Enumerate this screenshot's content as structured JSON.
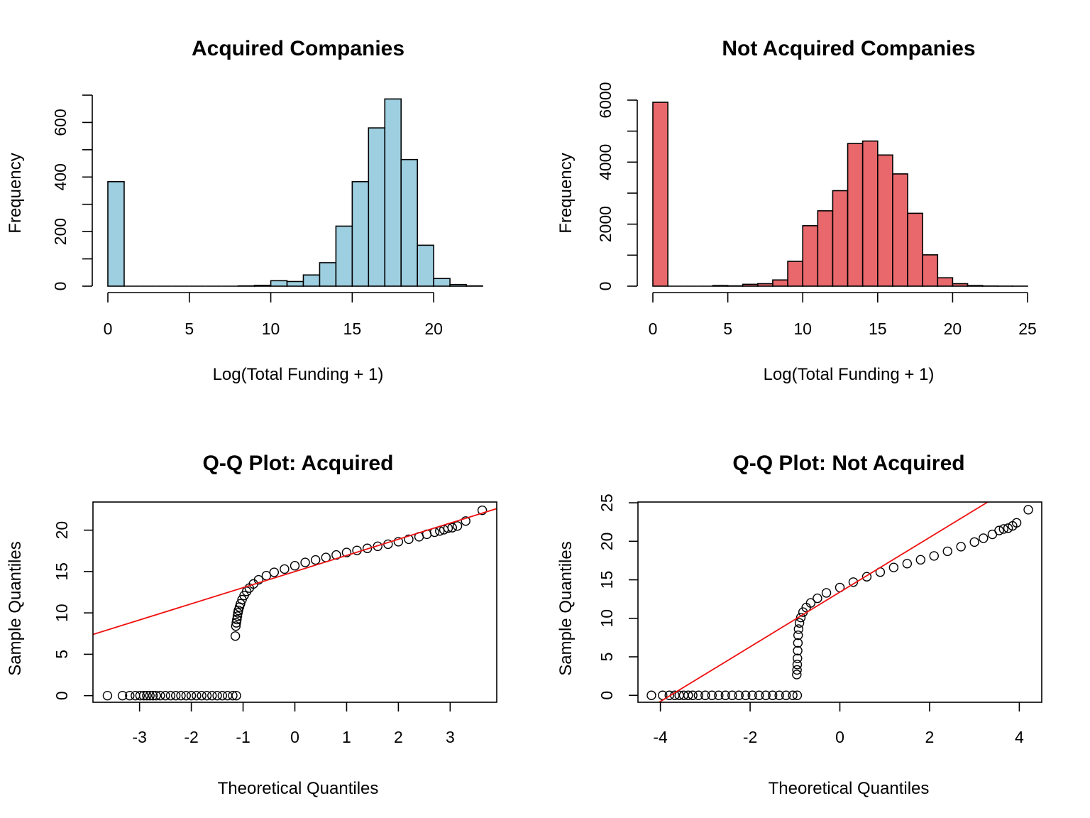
{
  "chart_data": [
    {
      "type": "bar",
      "title": "Acquired Companies",
      "xlabel": "Log(Total Funding + 1)",
      "ylabel": "Frequency",
      "bin_width": 1,
      "bin_start": 0,
      "values": [
        383,
        0,
        0,
        0,
        0,
        0,
        0,
        0,
        1,
        3,
        20,
        17,
        41,
        86,
        220,
        383,
        580,
        686,
        464,
        150,
        28,
        6,
        1
      ],
      "xlim": [
        0,
        23
      ],
      "ylim": [
        0,
        700
      ],
      "xticks": [
        0,
        5,
        10,
        15,
        20
      ],
      "xtick_labels": [
        "0",
        "5",
        "10",
        "15",
        "20"
      ],
      "yticks": [
        0,
        100,
        200,
        300,
        400,
        500,
        600,
        700
      ],
      "ytick_labels": [
        "0",
        "",
        "200",
        "",
        "400",
        "",
        "600",
        ""
      ],
      "bar_color": "#9ecfe0",
      "grid": false
    },
    {
      "type": "bar",
      "title": "Not Acquired Companies",
      "xlabel": "Log(Total Funding + 1)",
      "ylabel": "Frequency",
      "bin_width": 1,
      "bin_start": 0,
      "values": [
        5930,
        0,
        0,
        0,
        20,
        10,
        60,
        80,
        200,
        800,
        1950,
        2430,
        3080,
        4600,
        4680,
        4230,
        3620,
        2350,
        1010,
        270,
        80,
        20,
        5,
        2,
        1
      ],
      "xlim": [
        0,
        25
      ],
      "ylim": [
        0,
        6000
      ],
      "xticks": [
        0,
        5,
        10,
        15,
        20,
        25
      ],
      "xtick_labels": [
        "0",
        "5",
        "10",
        "15",
        "20",
        "25"
      ],
      "yticks": [
        0,
        1000,
        2000,
        3000,
        4000,
        5000,
        6000
      ],
      "ytick_labels": [
        "0",
        "",
        "2000",
        "",
        "4000",
        "",
        "6000"
      ],
      "bar_color": "#e8686c",
      "grid": false
    },
    {
      "type": "scatter",
      "title": "Q-Q Plot: Acquired",
      "xlabel": "Theoretical Quantiles",
      "ylabel": "Sample Quantiles",
      "xlim": [
        -3.9,
        3.9
      ],
      "ylim": [
        -0.8,
        23.4
      ],
      "xticks": [
        -3,
        -2,
        -1,
        0,
        1,
        2,
        3
      ],
      "xtick_labels": [
        "-3",
        "-2",
        "-1",
        "0",
        "1",
        "2",
        "3"
      ],
      "yticks": [
        0,
        5,
        10,
        15,
        20
      ],
      "ytick_labels": [
        "0",
        "5",
        "10",
        "15",
        "20"
      ],
      "reference_line": {
        "intercept": 15.0,
        "slope": 1.95,
        "color": "#ee1111"
      },
      "points": [
        [
          -3.62,
          0
        ],
        [
          -3.33,
          0
        ],
        [
          -3.19,
          0
        ],
        [
          -3.08,
          0
        ],
        [
          -2.99,
          0
        ],
        [
          -2.92,
          0
        ],
        [
          -2.86,
          0
        ],
        [
          -2.8,
          0
        ],
        [
          -2.74,
          0
        ],
        [
          -2.68,
          0
        ],
        [
          -2.6,
          0
        ],
        [
          -2.5,
          0
        ],
        [
          -2.4,
          0
        ],
        [
          -2.3,
          0
        ],
        [
          -2.2,
          0
        ],
        [
          -2.1,
          0
        ],
        [
          -2.0,
          0
        ],
        [
          -1.9,
          0
        ],
        [
          -1.8,
          0
        ],
        [
          -1.7,
          0
        ],
        [
          -1.6,
          0
        ],
        [
          -1.5,
          0
        ],
        [
          -1.4,
          0
        ],
        [
          -1.3,
          0
        ],
        [
          -1.2,
          0
        ],
        [
          -1.13,
          0
        ],
        [
          -1.15,
          7.2
        ],
        [
          -1.14,
          8.4
        ],
        [
          -1.13,
          8.8
        ],
        [
          -1.12,
          9.2
        ],
        [
          -1.11,
          9.6
        ],
        [
          -1.1,
          10.0
        ],
        [
          -1.09,
          10.3
        ],
        [
          -1.07,
          10.7
        ],
        [
          -1.05,
          11.1
        ],
        [
          -1.02,
          11.6
        ],
        [
          -0.98,
          12.1
        ],
        [
          -0.93,
          12.6
        ],
        [
          -0.88,
          13.0
        ],
        [
          -0.8,
          13.5
        ],
        [
          -0.7,
          14.0
        ],
        [
          -0.55,
          14.5
        ],
        [
          -0.4,
          14.9
        ],
        [
          -0.2,
          15.3
        ],
        [
          0.0,
          15.7
        ],
        [
          0.2,
          16.1
        ],
        [
          0.4,
          16.4
        ],
        [
          0.6,
          16.7
        ],
        [
          0.8,
          17.0
        ],
        [
          1.0,
          17.3
        ],
        [
          1.2,
          17.55
        ],
        [
          1.4,
          17.8
        ],
        [
          1.6,
          18.05
        ],
        [
          1.8,
          18.3
        ],
        [
          2.0,
          18.6
        ],
        [
          2.2,
          18.9
        ],
        [
          2.4,
          19.2
        ],
        [
          2.55,
          19.5
        ],
        [
          2.7,
          19.75
        ],
        [
          2.8,
          19.9
        ],
        [
          2.88,
          20.05
        ],
        [
          2.96,
          20.25
        ],
        [
          3.04,
          20.3
        ],
        [
          3.14,
          20.5
        ],
        [
          3.3,
          21.1
        ],
        [
          3.62,
          22.4
        ]
      ],
      "grid": false
    },
    {
      "type": "scatter",
      "title": "Q-Q Plot: Not Acquired",
      "xlabel": "Theoretical Quantiles",
      "ylabel": "Sample Quantiles",
      "xlim": [
        -4.5,
        4.5
      ],
      "ylim": [
        -0.9,
        25.1
      ],
      "xticks": [
        -4,
        -2,
        0,
        2,
        4
      ],
      "xtick_labels": [
        "-4",
        "-2",
        "0",
        "2",
        "4"
      ],
      "yticks": [
        0,
        5,
        10,
        15,
        20,
        25
      ],
      "ytick_labels": [
        "0",
        "5",
        "10",
        "15",
        "20",
        "25"
      ],
      "reference_line": {
        "intercept": 13.4,
        "slope": 3.55,
        "color": "#ee1111"
      },
      "points": [
        [
          -4.2,
          0
        ],
        [
          -3.95,
          0
        ],
        [
          -3.8,
          0
        ],
        [
          -3.68,
          0
        ],
        [
          -3.58,
          0
        ],
        [
          -3.48,
          0
        ],
        [
          -3.38,
          0
        ],
        [
          -3.28,
          0
        ],
        [
          -3.15,
          0
        ],
        [
          -3.0,
          0
        ],
        [
          -2.85,
          0
        ],
        [
          -2.7,
          0
        ],
        [
          -2.55,
          0
        ],
        [
          -2.4,
          0
        ],
        [
          -2.25,
          0
        ],
        [
          -2.1,
          0
        ],
        [
          -1.95,
          0
        ],
        [
          -1.8,
          0
        ],
        [
          -1.65,
          0
        ],
        [
          -1.5,
          0
        ],
        [
          -1.35,
          0
        ],
        [
          -1.2,
          0
        ],
        [
          -1.05,
          0
        ],
        [
          -0.95,
          0
        ],
        [
          -0.96,
          2.7
        ],
        [
          -0.955,
          3.3
        ],
        [
          -0.95,
          4.0
        ],
        [
          -0.945,
          4.8
        ],
        [
          -0.94,
          5.8
        ],
        [
          -0.935,
          6.8
        ],
        [
          -0.93,
          7.8
        ],
        [
          -0.92,
          8.6
        ],
        [
          -0.9,
          9.4
        ],
        [
          -0.87,
          10.1
        ],
        [
          -0.82,
          10.8
        ],
        [
          -0.75,
          11.4
        ],
        [
          -0.65,
          12.0
        ],
        [
          -0.5,
          12.6
        ],
        [
          -0.3,
          13.3
        ],
        [
          0.0,
          14.0
        ],
        [
          0.3,
          14.7
        ],
        [
          0.6,
          15.4
        ],
        [
          0.9,
          16.0
        ],
        [
          1.2,
          16.6
        ],
        [
          1.5,
          17.1
        ],
        [
          1.8,
          17.6
        ],
        [
          2.1,
          18.1
        ],
        [
          2.4,
          18.7
        ],
        [
          2.7,
          19.3
        ],
        [
          3.0,
          19.9
        ],
        [
          3.2,
          20.4
        ],
        [
          3.4,
          20.9
        ],
        [
          3.55,
          21.4
        ],
        [
          3.65,
          21.6
        ],
        [
          3.75,
          21.7
        ],
        [
          3.85,
          22.0
        ],
        [
          3.94,
          22.4
        ],
        [
          4.2,
          24.1
        ]
      ],
      "grid": false
    }
  ]
}
